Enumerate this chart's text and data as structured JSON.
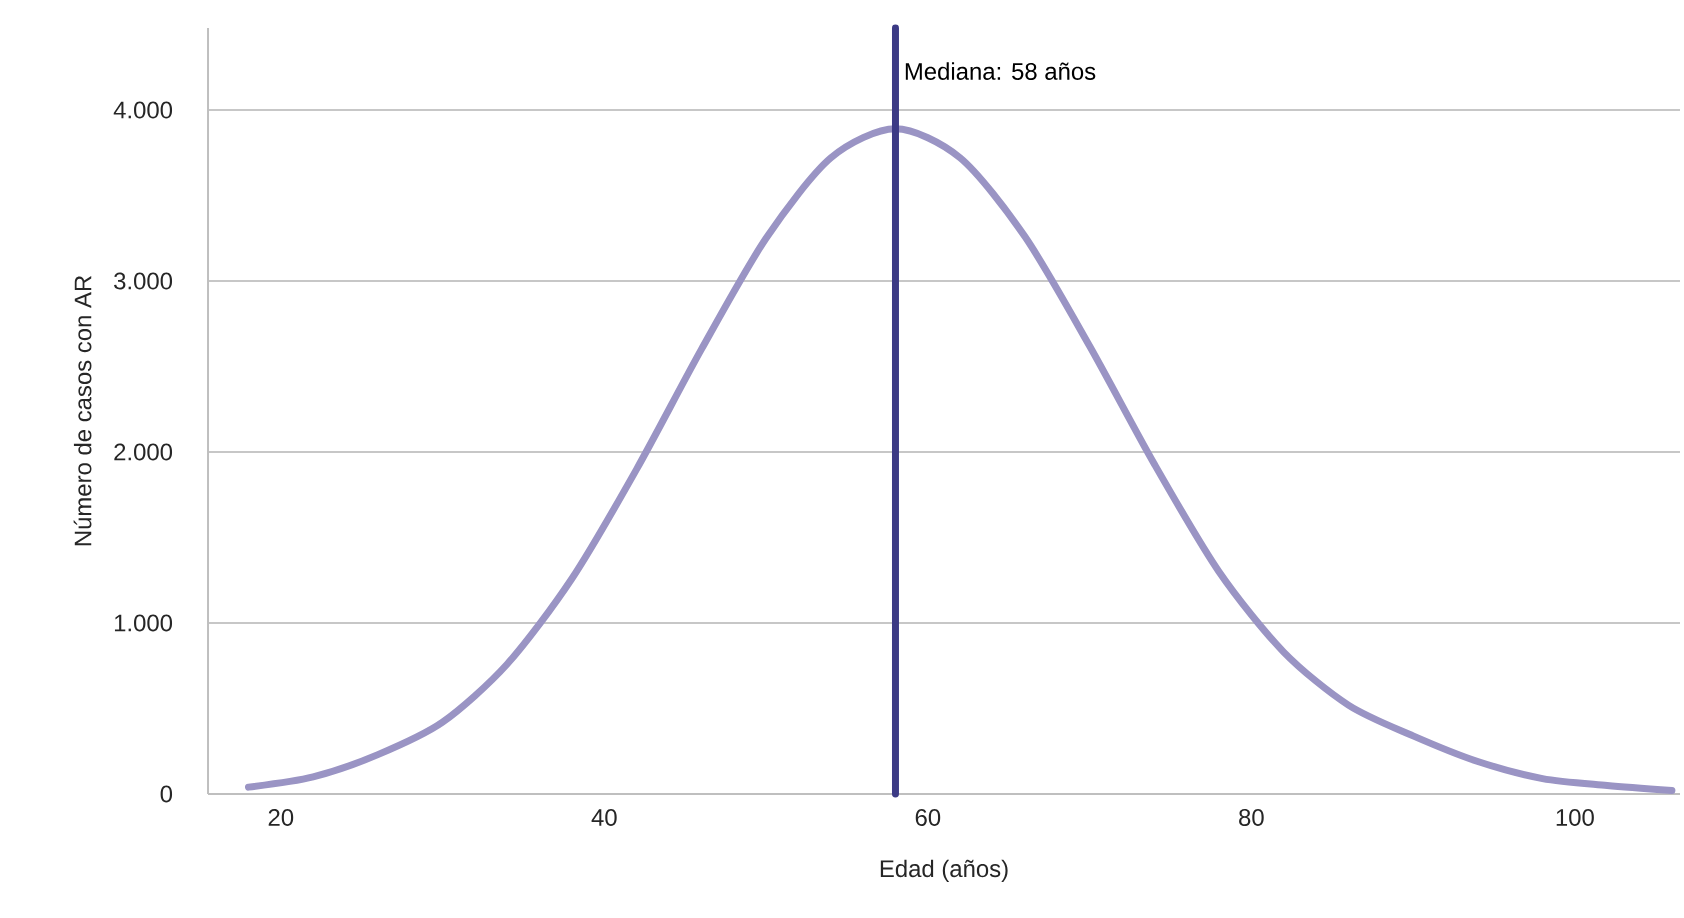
{
  "chart_data": {
    "type": "line",
    "xlabel": "Edad (años)",
    "ylabel": "Número de casos con AR",
    "x": [
      18,
      22,
      26,
      30,
      34,
      38,
      42,
      46,
      50,
      54,
      58,
      62,
      66,
      70,
      74,
      78,
      82,
      86,
      90,
      94,
      98,
      102,
      106
    ],
    "series": [
      {
        "color": "#9a94c4",
        "values": [
          40,
          100,
          230,
          420,
          760,
          1260,
          1900,
          2600,
          3250,
          3720,
          3890,
          3720,
          3260,
          2620,
          1930,
          1300,
          830,
          520,
          340,
          190,
          90,
          50,
          20
        ]
      }
    ],
    "xlim": [
      15.5,
      106.5
    ],
    "ylim": [
      0,
      4480
    ],
    "xticks": [
      20,
      40,
      60,
      80,
      100
    ],
    "yticks": [
      {
        "value": 0,
        "label": "0"
      },
      {
        "value": 1000,
        "label": "1.000"
      },
      {
        "value": 2000,
        "label": "2.000"
      },
      {
        "value": 3000,
        "label": "3.000"
      },
      {
        "value": 4000,
        "label": "4.000"
      }
    ],
    "grid": "y",
    "marker": "none",
    "line_style": "solid",
    "ref_lines": [
      {
        "axis": "x",
        "value": 58,
        "label": "Mediana: 58 años",
        "color": "#3c3a85"
      }
    ]
  }
}
